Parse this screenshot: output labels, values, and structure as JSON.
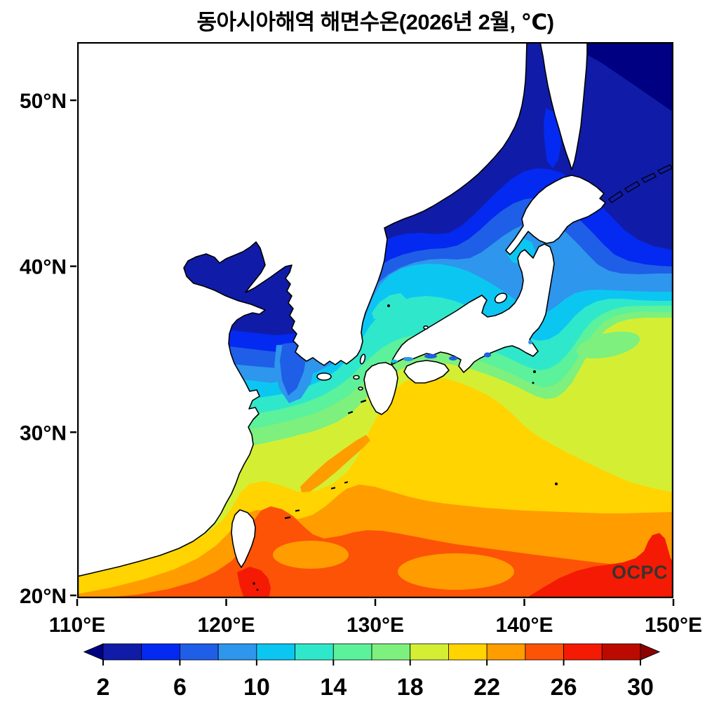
{
  "title": "동아시아해역 해면수온(2026년 2월, ℃)",
  "watermark": "OCPC",
  "axes": {
    "x_ticks": [
      "110°E",
      "120°E",
      "130°E",
      "140°E",
      "150°E"
    ],
    "y_ticks": [
      "50°N",
      "40°N",
      "30°N",
      "20°N"
    ]
  },
  "colorbar": {
    "tick_labels": [
      "2",
      "6",
      "10",
      "14",
      "18",
      "22",
      "26",
      "30"
    ],
    "segment_colors": [
      "#101ca8",
      "#0429f0",
      "#1f5ee6",
      "#2e96ec",
      "#0cc6f2",
      "#2fe8cb",
      "#5cf19b",
      "#7df07d",
      "#d4ef33",
      "#ffd400",
      "#ff9c00",
      "#fd5306",
      "#f51a04",
      "#bd0a00"
    ],
    "arrow_left_color": "#000082",
    "arrow_right_color": "#8f0000"
  },
  "palette": {
    "lt2": "#000082",
    "c2_4": "#101ca8",
    "c4_6": "#0429f0",
    "c6_8": "#1f5ee6",
    "c8_10": "#2e96ec",
    "c10_12": "#0cc6f2",
    "c12_14": "#2fe8cb",
    "c14_16": "#5cf19b",
    "c16_18": "#7df07d",
    "c18_20": "#d4ef33",
    "c20_22": "#ffd400",
    "c22_24": "#ff9c00",
    "c24_26": "#fd5306",
    "c26_28": "#f51a04",
    "c28_30": "#bd0a00",
    "gt30": "#8f0000",
    "land": "#ffffff",
    "coastline": "#000000",
    "frame": "#000000",
    "watermark_color": "#3a332e"
  },
  "chart_data": {
    "type": "filled_contour_map",
    "title": "동아시아해역 해면수온(2026년 2월, ℃)",
    "variable": "해면수온 (sea surface temperature)",
    "period_label": "2026년 2월",
    "units": "℃",
    "lon_range_deg_e": [
      110,
      150
    ],
    "lat_range_deg_n": [
      20,
      53.5
    ],
    "x_tick_values_deg_e": [
      110,
      120,
      130,
      140,
      150
    ],
    "y_tick_values_deg_n": [
      20,
      30,
      40,
      50
    ],
    "contour_interval_c": 2,
    "colorbar_range_c": [
      2,
      30
    ],
    "colorbar_tick_values_c": [
      2,
      6,
      10,
      14,
      18,
      22,
      26,
      30
    ],
    "legend_position": "bottom",
    "readings_c": {
      "sea_of_okhotsk_northeast": "2-4",
      "tatar_strait": "2-6",
      "northwest_sea_of_japan_vladivostok": "2-6",
      "bohai_sea": "2-4",
      "northern_yellow_sea": "4-8",
      "central_sea_of_japan": "8-12",
      "west_coast_of_honshu": "10-14",
      "korea_strait_tsushima": "12-16",
      "east_china_sea_shelf": "14-20",
      "south_of_shikoku_kuroshio": "20-24",
      "taiwan_strait": "18-22",
      "east_of_taiwan": "24-26",
      "south_of_taiwan": "26-28",
      "southeast_corner_philippine_sea": "26-28",
      "oyashio_region_east_of_honshu": "2-10"
    },
    "source_label": "OCPC"
  }
}
